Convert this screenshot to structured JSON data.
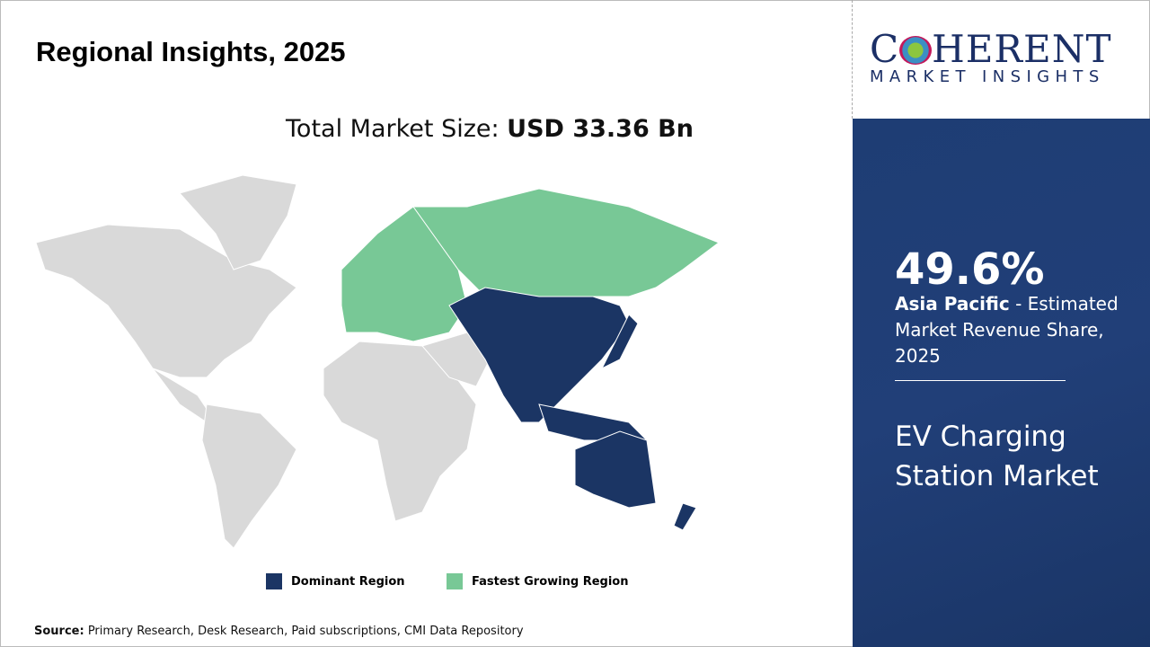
{
  "header": {
    "title": "Regional Insights, 2025",
    "total_label": "Total Market Size: ",
    "total_value": "USD 33.36 Bn"
  },
  "legend": [
    {
      "label": "Dominant Region",
      "color": "#1b3564"
    },
    {
      "label": "Fastest Growing Region",
      "color": "#78c896"
    }
  ],
  "map": {
    "other_color": "#d9d9d9",
    "dominant": "Asia Pacific",
    "fastest_growing": "Europe"
  },
  "source": {
    "label": "Source:",
    "text": " Primary Research, Desk Research, Paid subscriptions, CMI Data Repository"
  },
  "logo": {
    "line1": "COHERENT",
    "line2": "MARKET INSIGHTS"
  },
  "panel": {
    "share": "49.6%",
    "region": "Asia Pacific",
    "desc": " - Estimated Market Revenue Share, 2025",
    "market_line1": "EV Charging",
    "market_line2": "Station Market"
  }
}
